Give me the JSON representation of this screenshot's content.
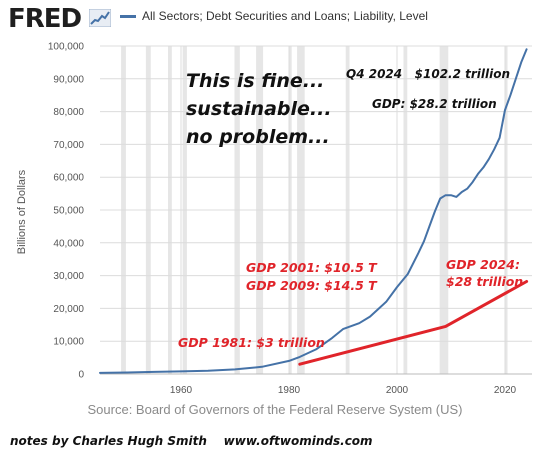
{
  "header": {
    "logo_text": "FRED",
    "logo_icon": "sparkline-icon",
    "legend_label": "All Sectors; Debt Securities and Loans; Liability, Level"
  },
  "colors": {
    "series": "#4572a7",
    "annotation_red": "#e0242a",
    "recession_shade": "#e6e6e6",
    "grid": "#dcdcdc"
  },
  "annotations": {
    "commentary": [
      "This is fine...",
      "sustainable...",
      "no problem..."
    ],
    "q4_label": "Q4 2024   $102.2 trillion",
    "gdp_label": "GDP: $28.2 trillion",
    "gdp_2001": "GDP 2001: $10.5 T",
    "gdp_2009": "GDP 2009: $14.5 T",
    "gdp_2024_line1": "GDP 2024:",
    "gdp_2024_line2": "$28 trillion",
    "gdp_1981": "GDP 1981: $3 trillion"
  },
  "source": "Source: Board of Governors of the Federal Reserve System (US)",
  "footer": "notes by Charles Hugh Smith    www.oftwominds.com",
  "chart_data": {
    "type": "line",
    "title": "",
    "ylabel": "Billions of Dollars",
    "xlim": [
      1945,
      2025
    ],
    "ylim": [
      0,
      100000
    ],
    "y_ticks": [
      0,
      10000,
      20000,
      30000,
      40000,
      50000,
      60000,
      70000,
      80000,
      90000,
      100000
    ],
    "y_tick_labels": [
      "0",
      "10,000",
      "20,000",
      "30,000",
      "40,000",
      "50,000",
      "60,000",
      "70,000",
      "80,000",
      "90,000",
      "100,000"
    ],
    "x_ticks": [
      1960,
      1980,
      2000,
      2020
    ],
    "x_tick_labels": [
      "1960",
      "1980",
      "2000",
      "2020"
    ],
    "grid": true,
    "recessions": [
      [
        1948.9,
        1949.8
      ],
      [
        1953.5,
        1954.4
      ],
      [
        1957.6,
        1958.3
      ],
      [
        1960.3,
        1961.1
      ],
      [
        1969.9,
        1970.9
      ],
      [
        1973.9,
        1975.2
      ],
      [
        1980.0,
        1980.5
      ],
      [
        1981.5,
        1982.9
      ],
      [
        1990.5,
        1991.2
      ],
      [
        2001.2,
        2001.9
      ],
      [
        2007.9,
        2009.5
      ],
      [
        2020.1,
        2020.4
      ]
    ],
    "series": [
      {
        "name": "All Sectors; Debt Securities and Loans; Liability, Level",
        "x": [
          1945,
          1950,
          1955,
          1960,
          1965,
          1970,
          1975,
          1980,
          1982,
          1985,
          1988,
          1990,
          1993,
          1995,
          1998,
          2000,
          2002,
          2004,
          2005,
          2006,
          2007,
          2008,
          2009,
          2010,
          2011,
          2012,
          2013,
          2014,
          2015,
          2016,
          2017,
          2018,
          2019,
          2020,
          2021,
          2022,
          2023,
          2024
        ],
        "values": [
          350,
          450,
          650,
          800,
          1000,
          1400,
          2200,
          4000,
          5200,
          7500,
          11000,
          13700,
          15500,
          17500,
          22000,
          26500,
          30500,
          37000,
          40500,
          45000,
          49500,
          53500,
          54500,
          54500,
          54000,
          55500,
          56500,
          58500,
          61000,
          63000,
          65500,
          68500,
          72000,
          80500,
          85000,
          90000,
          95000,
          99000
        ]
      },
      {
        "name": "",
        "x": [
          1982,
          2009,
          2024
        ],
        "values": [
          3000,
          14500,
          28200
        ]
      }
    ]
  }
}
